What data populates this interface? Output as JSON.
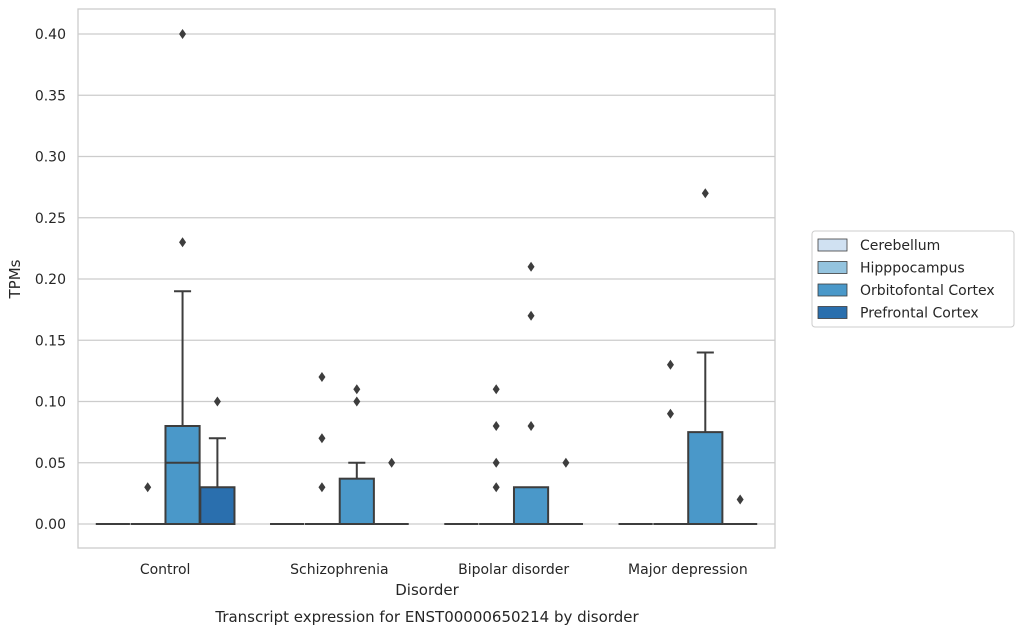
{
  "chart_data": {
    "type": "box",
    "caption": "Transcript expression for ENST00000650214 by disorder",
    "xlabel": "Disorder",
    "ylabel": "TPMs",
    "ylim": [
      -0.019,
      0.42
    ],
    "yticks": [
      0.0,
      0.05,
      0.1,
      0.15,
      0.2,
      0.25,
      0.3,
      0.35,
      0.4
    ],
    "ytick_labels": [
      "0.00",
      "0.05",
      "0.10",
      "0.15",
      "0.20",
      "0.25",
      "0.30",
      "0.35",
      "0.40"
    ],
    "grid": true,
    "legend_position": "right",
    "categories": [
      "Control",
      "Schizophrenia",
      "Bipolar disorder",
      "Major depression"
    ],
    "series": [
      {
        "name": "Cerebellum",
        "color": "#d0e1f2",
        "boxes": [
          {
            "q1": 0.0,
            "median": 0.0,
            "q3": 0.0,
            "whisker_low": 0.0,
            "whisker_high": 0.0,
            "outliers": []
          },
          {
            "q1": 0.0,
            "median": 0.0,
            "q3": 0.0,
            "whisker_low": 0.0,
            "whisker_high": 0.0,
            "outliers": []
          },
          {
            "q1": 0.0,
            "median": 0.0,
            "q3": 0.0,
            "whisker_low": 0.0,
            "whisker_high": 0.0,
            "outliers": []
          },
          {
            "q1": 0.0,
            "median": 0.0,
            "q3": 0.0,
            "whisker_low": 0.0,
            "whisker_high": 0.0,
            "outliers": []
          }
        ]
      },
      {
        "name": "Hipppocampus",
        "color": "#94c4df",
        "boxes": [
          {
            "q1": 0.0,
            "median": 0.0,
            "q3": 0.0,
            "whisker_low": 0.0,
            "whisker_high": 0.0,
            "outliers": [
              0.03
            ]
          },
          {
            "q1": 0.0,
            "median": 0.0,
            "q3": 0.0,
            "whisker_low": 0.0,
            "whisker_high": 0.0,
            "outliers": [
              0.07,
              0.03,
              0.12
            ]
          },
          {
            "q1": 0.0,
            "median": 0.0,
            "q3": 0.0,
            "whisker_low": 0.0,
            "whisker_high": 0.0,
            "outliers": [
              0.05,
              0.03,
              0.11,
              0.08
            ]
          },
          {
            "q1": 0.0,
            "median": 0.0,
            "q3": 0.0,
            "whisker_low": 0.0,
            "whisker_high": 0.0,
            "outliers": [
              0.13,
              0.09
            ]
          }
        ]
      },
      {
        "name": "Orbitofontal Cortex",
        "color": "#4a98c9",
        "boxes": [
          {
            "q1": 0.0,
            "median": 0.05,
            "q3": 0.08,
            "whisker_low": 0.0,
            "whisker_high": 0.19,
            "outliers": [
              0.4,
              0.23
            ]
          },
          {
            "q1": 0.0,
            "median": 0.0,
            "q3": 0.037,
            "whisker_low": 0.0,
            "whisker_high": 0.05,
            "outliers": [
              0.11,
              0.1
            ]
          },
          {
            "q1": 0.0,
            "median": 0.0,
            "q3": 0.03,
            "whisker_low": 0.0,
            "whisker_high": 0.03,
            "outliers": [
              0.21,
              0.17,
              0.08
            ]
          },
          {
            "q1": 0.0,
            "median": 0.0,
            "q3": 0.075,
            "whisker_low": 0.0,
            "whisker_high": 0.14,
            "outliers": [
              0.27
            ]
          }
        ]
      },
      {
        "name": "Prefrontal Cortex",
        "color": "#2a6fae",
        "boxes": [
          {
            "q1": 0.0,
            "median": 0.0,
            "q3": 0.03,
            "whisker_low": 0.0,
            "whisker_high": 0.07,
            "outliers": [
              0.1
            ]
          },
          {
            "q1": 0.0,
            "median": 0.0,
            "q3": 0.0,
            "whisker_low": 0.0,
            "whisker_high": 0.0,
            "outliers": [
              0.05
            ]
          },
          {
            "q1": 0.0,
            "median": 0.0,
            "q3": 0.0,
            "whisker_low": 0.0,
            "whisker_high": 0.0,
            "outliers": [
              0.05
            ]
          },
          {
            "q1": 0.0,
            "median": 0.0,
            "q3": 0.0,
            "whisker_low": 0.0,
            "whisker_high": 0.0,
            "outliers": [
              0.02
            ]
          }
        ]
      }
    ]
  }
}
